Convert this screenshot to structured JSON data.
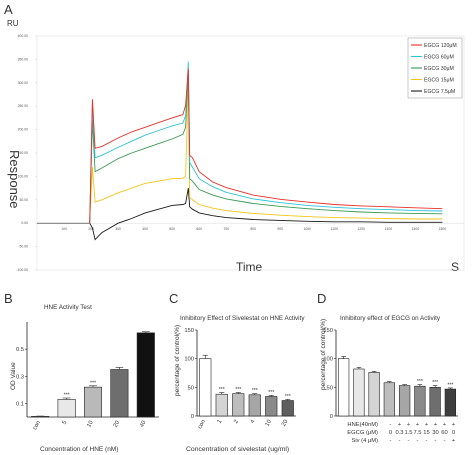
{
  "chart_data": [
    {
      "panel": "A",
      "type": "line",
      "unit_label": "RU",
      "ylabel": "Response",
      "xlabel": "Time",
      "xunit": "S",
      "ylim": [
        -100,
        400
      ],
      "y_ticks": [
        "400.00",
        "350.00",
        "300.00",
        "250.00",
        "200.00",
        "150.00",
        "100.00",
        "50.00",
        "0.00",
        "-50.00",
        "-100.00"
      ],
      "x_ticks": [
        "100",
        "200",
        "300",
        "400",
        "500",
        "600",
        "700",
        "800",
        "900",
        "1000",
        "1100",
        "1200",
        "1300",
        "1400",
        "1500"
      ],
      "legend": [
        "EGCG 120μM",
        "EGCG  60μM",
        "EGCG  30μM",
        "EGCG  15μM",
        "EGCG  7.5μM"
      ],
      "legend_placement": "top-right",
      "series": [
        {
          "name": "EGCG 120μM",
          "color": "#e8302a",
          "x": [
            195,
            205,
            215,
            240,
            300,
            350,
            400,
            450,
            500,
            540,
            550,
            560,
            565,
            575,
            600,
            650,
            700,
            800,
            900,
            1000,
            1100,
            1200,
            1300,
            1400,
            1500
          ],
          "y": [
            0,
            265,
            160,
            164,
            182,
            195,
            205,
            215,
            225,
            232,
            252,
            330,
            145,
            140,
            110,
            88,
            76,
            60,
            51,
            45,
            40,
            37,
            35,
            33,
            31
          ]
        },
        {
          "name": "EGCG  60μM",
          "color": "#2ec3d8",
          "x": [
            195,
            205,
            215,
            240,
            300,
            350,
            400,
            450,
            500,
            540,
            550,
            560,
            565,
            575,
            600,
            650,
            700,
            800,
            900,
            1000,
            1100,
            1200,
            1300,
            1400,
            1500
          ],
          "y": [
            0,
            250,
            140,
            145,
            162,
            175,
            188,
            198,
            208,
            214,
            230,
            345,
            130,
            120,
            95,
            78,
            66,
            52,
            44,
            38,
            34,
            31,
            29,
            27,
            26
          ]
        },
        {
          "name": "EGCG  30μM",
          "color": "#3a9a52",
          "x": [
            195,
            205,
            215,
            240,
            300,
            350,
            400,
            450,
            500,
            540,
            550,
            560,
            565,
            575,
            600,
            650,
            700,
            800,
            900,
            1000,
            1100,
            1200,
            1300,
            1400,
            1500
          ],
          "y": [
            0,
            220,
            110,
            118,
            138,
            150,
            160,
            170,
            180,
            190,
            205,
            320,
            95,
            90,
            72,
            60,
            52,
            42,
            36,
            31,
            27,
            24,
            22,
            21,
            20
          ]
        },
        {
          "name": "EGCG  15μM",
          "color": "#f4c51c",
          "x": [
            195,
            205,
            215,
            240,
            300,
            350,
            400,
            450,
            500,
            540,
            550,
            560,
            565,
            575,
            600,
            650,
            700,
            800,
            900,
            1000,
            1100,
            1200,
            1300,
            1400,
            1500
          ],
          "y": [
            0,
            120,
            45,
            50,
            65,
            75,
            85,
            90,
            95,
            96,
            100,
            300,
            55,
            50,
            40,
            32,
            27,
            21,
            17,
            14,
            12,
            11,
            10,
            9,
            9
          ]
        },
        {
          "name": "EGCG  7.5μM",
          "color": "#1a1a1a",
          "x": [
            195,
            205,
            215,
            240,
            300,
            350,
            400,
            450,
            500,
            540,
            550,
            560,
            565,
            575,
            600,
            650,
            700,
            800,
            900,
            1000,
            1100,
            1200,
            1300,
            1400,
            1500
          ],
          "y": [
            0,
            -10,
            -35,
            -20,
            0,
            10,
            22,
            30,
            38,
            40,
            42,
            75,
            35,
            30,
            22,
            16,
            12,
            8,
            6,
            4,
            3,
            3,
            2,
            2,
            2
          ]
        }
      ],
      "grid": false
    },
    {
      "panel": "B",
      "type": "bar",
      "title": "HNE Activity Test",
      "ylabel": "OD Value",
      "xlabel": "Concentration of HNE (nM)",
      "categories": [
        "con",
        "5",
        "10",
        "20",
        "40"
      ],
      "values": [
        0.005,
        0.13,
        0.22,
        0.35,
        0.62
      ],
      "errors": [
        0.002,
        0.01,
        0.01,
        0.015,
        0.008
      ],
      "colors": [
        "#ffffff",
        "#e8e8e8",
        "#b9b9b9",
        "#6e6e6e",
        "#111111"
      ],
      "y_ticks": [
        "0.1",
        "0.3",
        "0.5"
      ],
      "tick_values": [
        0.1,
        0.3,
        0.5
      ],
      "ylim": [
        0,
        0.7
      ],
      "significance": [
        "",
        "***",
        "***",
        "",
        ""
      ],
      "grid": false
    },
    {
      "panel": "C",
      "type": "bar",
      "title": "Inhibitory Effect of Sivelestat on HNE Activity",
      "ylabel": "percentage of control(%)",
      "xlabel": "Concentration of sivelestat (ug/ml)",
      "categories": [
        "con",
        "1",
        "2",
        "4",
        "10",
        "20"
      ],
      "values": [
        100,
        38,
        39,
        37,
        34,
        27
      ],
      "errors": [
        6,
        3,
        2,
        2,
        2,
        2
      ],
      "colors": [
        "#ffffff",
        "#d4d4d4",
        "#bdbdbd",
        "#a6a6a6",
        "#8a8a8a",
        "#5e5e5e"
      ],
      "y_ticks": [
        "0",
        "50",
        "100",
        "150"
      ],
      "tick_values": [
        0,
        50,
        100,
        150
      ],
      "ylim": [
        0,
        150
      ],
      "significance": [
        "",
        "***",
        "***",
        "***",
        "***",
        "***"
      ],
      "grid": false
    },
    {
      "panel": "D",
      "type": "bar",
      "title": "Inhibitory effect of EGCG on Activity",
      "ylabel": "percentage of control(%)",
      "categories": [
        "1",
        "2",
        "3",
        "4",
        "5",
        "6",
        "7",
        "8"
      ],
      "values": [
        100,
        82,
        76,
        58,
        53,
        52,
        50,
        47
      ],
      "errors": [
        4,
        3,
        2,
        2,
        2,
        3,
        3,
        2
      ],
      "colors": [
        "#ffffff",
        "#e8e8e8",
        "#d4d4d4",
        "#bdbdbd",
        "#a6a6a6",
        "#8a8a8a",
        "#6e6e6e",
        "#3e3e3e"
      ],
      "y_ticks": [
        "0",
        "50",
        "100",
        "150"
      ],
      "tick_values": [
        0,
        50,
        100,
        150
      ],
      "ylim": [
        0,
        150
      ],
      "significance": [
        "",
        "",
        "",
        "",
        "",
        "***",
        "***",
        "***"
      ],
      "row_labels": [
        "HNE(40nM)",
        "EGCG (μM)",
        "Siv (4 μM)"
      ],
      "rows": [
        [
          "-",
          "+",
          "+",
          "+",
          "+",
          "+",
          "+",
          "+"
        ],
        [
          "0",
          "0.3",
          "1.5",
          "7.5",
          "15",
          "30",
          "60",
          "0"
        ],
        [
          "-",
          "-",
          "-",
          "-",
          "-",
          "-",
          "-",
          "+"
        ]
      ],
      "grid": false
    }
  ]
}
